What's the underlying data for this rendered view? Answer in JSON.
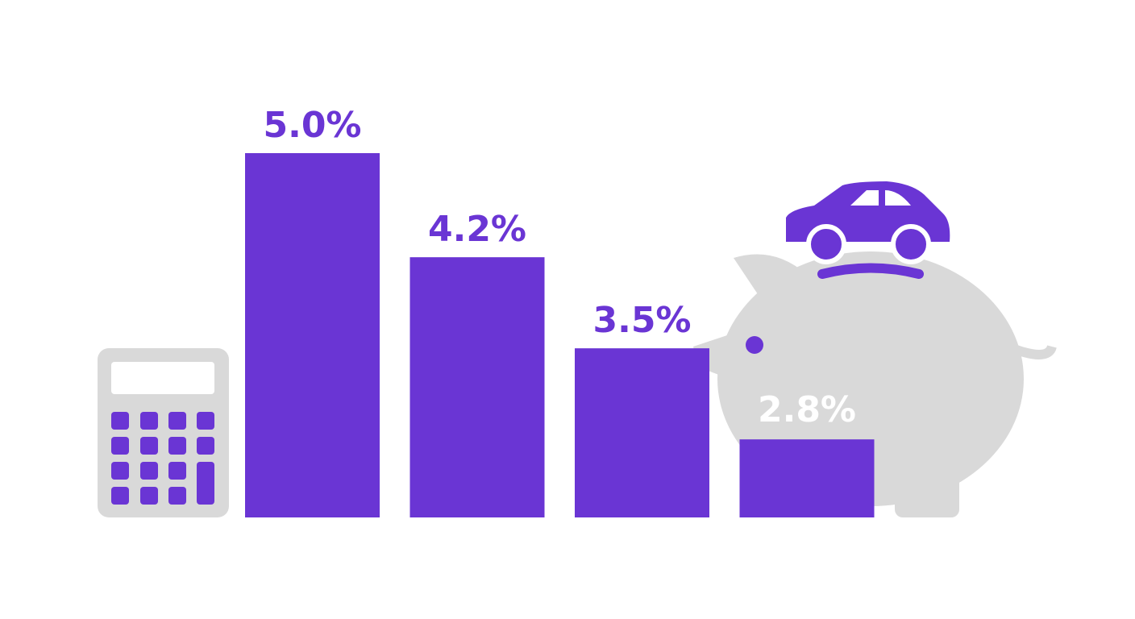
{
  "chart_data": {
    "type": "bar",
    "values": [
      5.0,
      4.2,
      3.5,
      2.8
    ],
    "value_labels": [
      "5.0%",
      "4.2%",
      "3.5%",
      "2.8%"
    ],
    "color": "#6a35d4",
    "ylim": [
      2.2,
      5.0
    ]
  }
}
